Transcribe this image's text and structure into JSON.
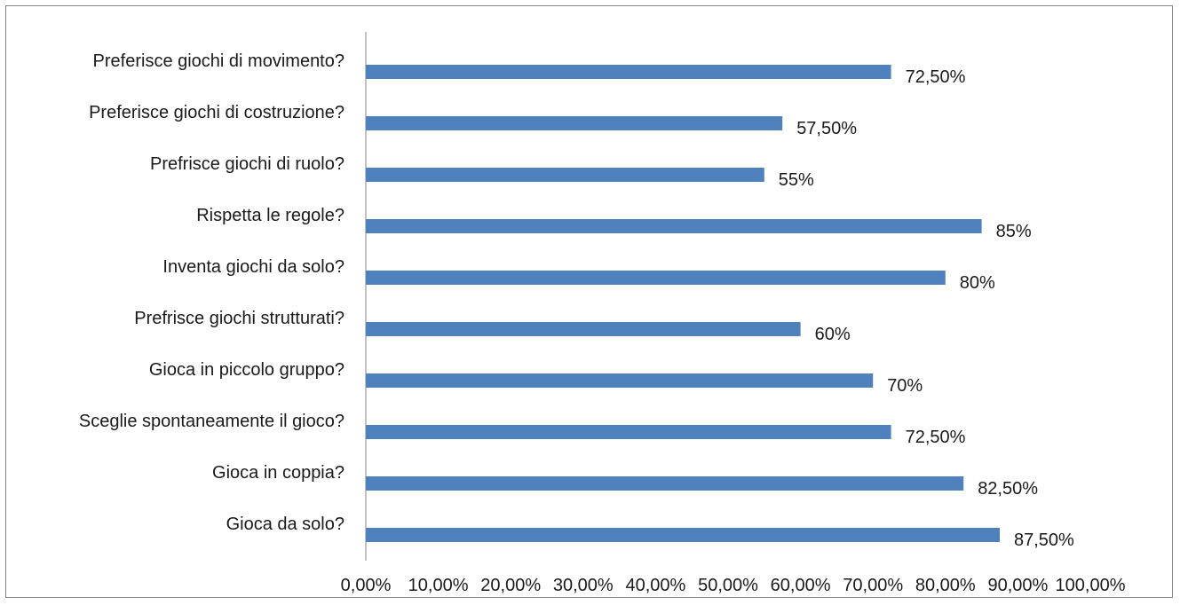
{
  "chart_data": {
    "type": "bar",
    "orientation": "horizontal",
    "title": "",
    "xlabel": "",
    "ylabel": "",
    "xlim": [
      0,
      100
    ],
    "x_ticks": [
      "0,00%",
      "10,00%",
      "20,00%",
      "30,00%",
      "40,00%",
      "50,00%",
      "60,00%",
      "70,00%",
      "80,00%",
      "90,00%",
      "100,00%"
    ],
    "grid": false,
    "legend": "none",
    "bar_color": "#4f81bd",
    "categories": [
      "Preferisce giochi di movimento?",
      "Preferisce giochi di costruzione?",
      "Prefrisce giochi di ruolo?",
      "Rispetta le regole?",
      "Inventa giochi da solo?",
      "Prefrisce giochi strutturati?",
      "Gioca in piccolo gruppo?",
      "Sceglie spontaneamente il gioco?",
      "Gioca in coppia?",
      "Gioca da solo?"
    ],
    "values": [
      72.5,
      57.5,
      55,
      85,
      80,
      60,
      70,
      72.5,
      82.5,
      87.5
    ],
    "data_labels": [
      "72,50%",
      "57,50%",
      "55%",
      "85%",
      "80%",
      "60%",
      "70%",
      "72,50%",
      "82,50%",
      "87,50%"
    ]
  }
}
